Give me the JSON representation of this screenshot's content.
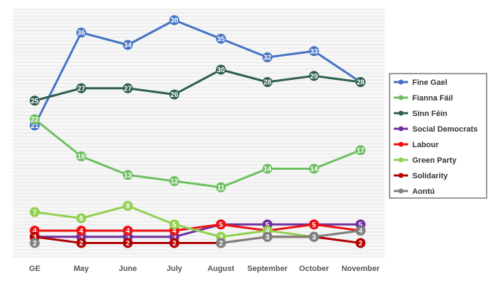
{
  "chart_data": {
    "type": "line",
    "categories": [
      "GE",
      "May",
      "June",
      "July",
      "August",
      "September",
      "October",
      "November"
    ],
    "ylim": [
      0,
      40
    ],
    "grid": true,
    "legend_position": "right",
    "series": [
      {
        "name": "Fine Gael",
        "color": "#4472C4",
        "values": [
          21,
          36,
          34,
          38,
          35,
          32,
          33,
          28
        ]
      },
      {
        "name": "Fianna Fáil",
        "color": "#6CBF5F",
        "values": [
          22,
          16,
          13,
          12,
          11,
          14,
          14,
          17
        ]
      },
      {
        "name": "Sinn Féin",
        "color": "#2E5E4E",
        "values": [
          25,
          27,
          27,
          26,
          30,
          28,
          29,
          28
        ]
      },
      {
        "name": "Social Democrats",
        "color": "#7030A0",
        "values": [
          3,
          3,
          3,
          3,
          5,
          5,
          5,
          5
        ]
      },
      {
        "name": "Labour",
        "color": "#EE1111",
        "values": [
          4,
          4,
          4,
          4,
          5,
          4,
          5,
          4
        ]
      },
      {
        "name": "Green Party",
        "color": "#92D050",
        "values": [
          7,
          6,
          8,
          5,
          3,
          4,
          3,
          4
        ]
      },
      {
        "name": "Solidarity",
        "color": "#B00000",
        "values": [
          3,
          2,
          2,
          2,
          2,
          3,
          3,
          2
        ]
      },
      {
        "name": "Aontú",
        "color": "#808080",
        "values": [
          2,
          null,
          null,
          null,
          2,
          3,
          3,
          4
        ]
      }
    ]
  }
}
